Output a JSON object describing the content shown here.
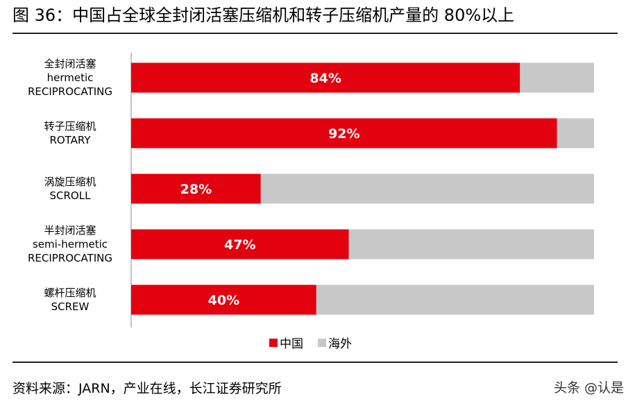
{
  "header": {
    "title": "图 36：中国占全球全封闭活塞压缩机和转子压缩机产量的 80%以上"
  },
  "footer": {
    "source": "资料来源：JARN，产业在线，长江证券研究所",
    "watermark": "头条 @认是"
  },
  "colors": {
    "china": "#e3000f",
    "overseas": "#c8c8c8",
    "axis": "#b0b0b0"
  },
  "chart_data": {
    "type": "bar",
    "orientation": "horizontal",
    "stacked": true,
    "categories": [
      [
        "全封闭活塞",
        "hermetic",
        "RECIPROCATING"
      ],
      [
        "转子压缩机",
        "ROTARY"
      ],
      [
        "涡旋压缩机",
        "SCROLL"
      ],
      [
        "半封闭活塞",
        "semi-hermetic",
        "RECIPROCATING"
      ],
      [
        "螺杆压缩机",
        "SCREW"
      ]
    ],
    "series": [
      {
        "name": "中国",
        "values": [
          84,
          92,
          28,
          47,
          40
        ],
        "labels": [
          "84%",
          "92%",
          "28%",
          "47%",
          "40%"
        ]
      },
      {
        "name": "海外",
        "values": [
          16,
          8,
          72,
          53,
          60
        ]
      }
    ],
    "xlim": [
      0,
      100
    ],
    "legend_position": "bottom"
  }
}
